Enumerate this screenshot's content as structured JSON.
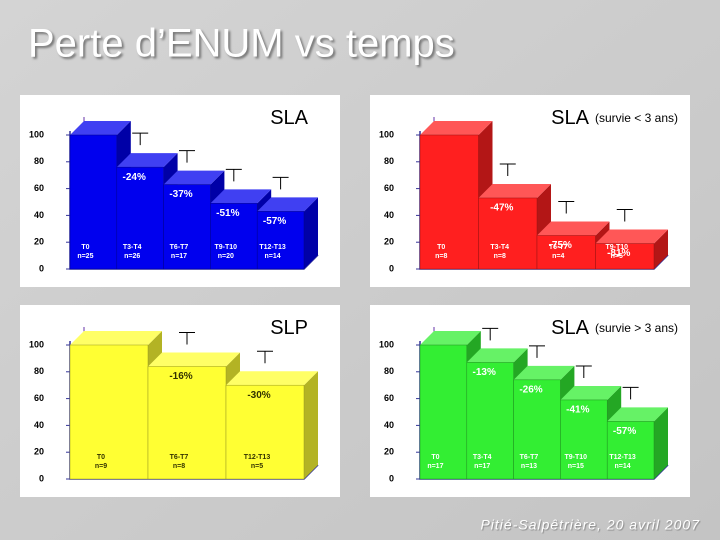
{
  "header": {
    "title": "Perte d’ENUM vs temps"
  },
  "footer": {
    "text": "Pitié-Salpêtrière, 20 avril 2007"
  },
  "chart_data": [
    {
      "type": "bar3d",
      "title": "SLA",
      "color": "#0000ee",
      "label_color": "#ffffff",
      "categories": [
        "T0",
        "T3-T4",
        "T6-T7",
        "T9-T10",
        "T12-T13"
      ],
      "n_labels": [
        "n=25",
        "n=26",
        "n=17",
        "n=20",
        "n=14"
      ],
      "values": [
        100,
        76,
        63,
        49,
        43
      ],
      "annotations": [
        null,
        "-24%",
        "-37%",
        "-51%",
        "-57%"
      ],
      "ylim": [
        0,
        100
      ],
      "yticks": [
        0,
        20,
        40,
        60,
        80,
        100
      ]
    },
    {
      "type": "bar3d",
      "title": "SLA",
      "subtitle": "(survie < 3 ans)",
      "color": "#ff1f1f",
      "label_color": "#ffffff",
      "categories": [
        "T0",
        "T3-T4",
        "T6-T7",
        "T9-T10"
      ],
      "n_labels": [
        "n=8",
        "n=8",
        "n=4",
        "n=5"
      ],
      "values": [
        100,
        53,
        25,
        19
      ],
      "annotations": [
        null,
        "-47%",
        "-75%",
        "-81%"
      ],
      "ylim": [
        0,
        100
      ],
      "yticks": [
        0,
        20,
        40,
        60,
        80,
        100
      ]
    },
    {
      "type": "bar3d",
      "title": "SLP",
      "color": "#ffff33",
      "label_color": "#333300",
      "categories": [
        "T0",
        "T6-T7",
        "T12-T13"
      ],
      "n_labels": [
        "n=9",
        "n=8",
        "n=5"
      ],
      "values": [
        100,
        84,
        70
      ],
      "annotations": [
        null,
        "-16%",
        "-30%"
      ],
      "ylim": [
        0,
        100
      ],
      "yticks": [
        0,
        20,
        40,
        60,
        80,
        100
      ]
    },
    {
      "type": "bar3d",
      "title": "SLA",
      "subtitle": "(survie > 3 ans)",
      "color": "#33ee33",
      "label_color": "#ffffff",
      "categories": [
        "T0",
        "T3-T4",
        "T6-T7",
        "T9-T10",
        "T12-T13"
      ],
      "n_labels": [
        "n=17",
        "n=17",
        "n=13",
        "n=15",
        "n=14"
      ],
      "values": [
        100,
        87,
        74,
        59,
        43
      ],
      "annotations": [
        null,
        "-13%",
        "-26%",
        "-41%",
        "-57%"
      ],
      "ylim": [
        0,
        100
      ],
      "yticks": [
        0,
        20,
        40,
        60,
        80,
        100
      ]
    }
  ]
}
